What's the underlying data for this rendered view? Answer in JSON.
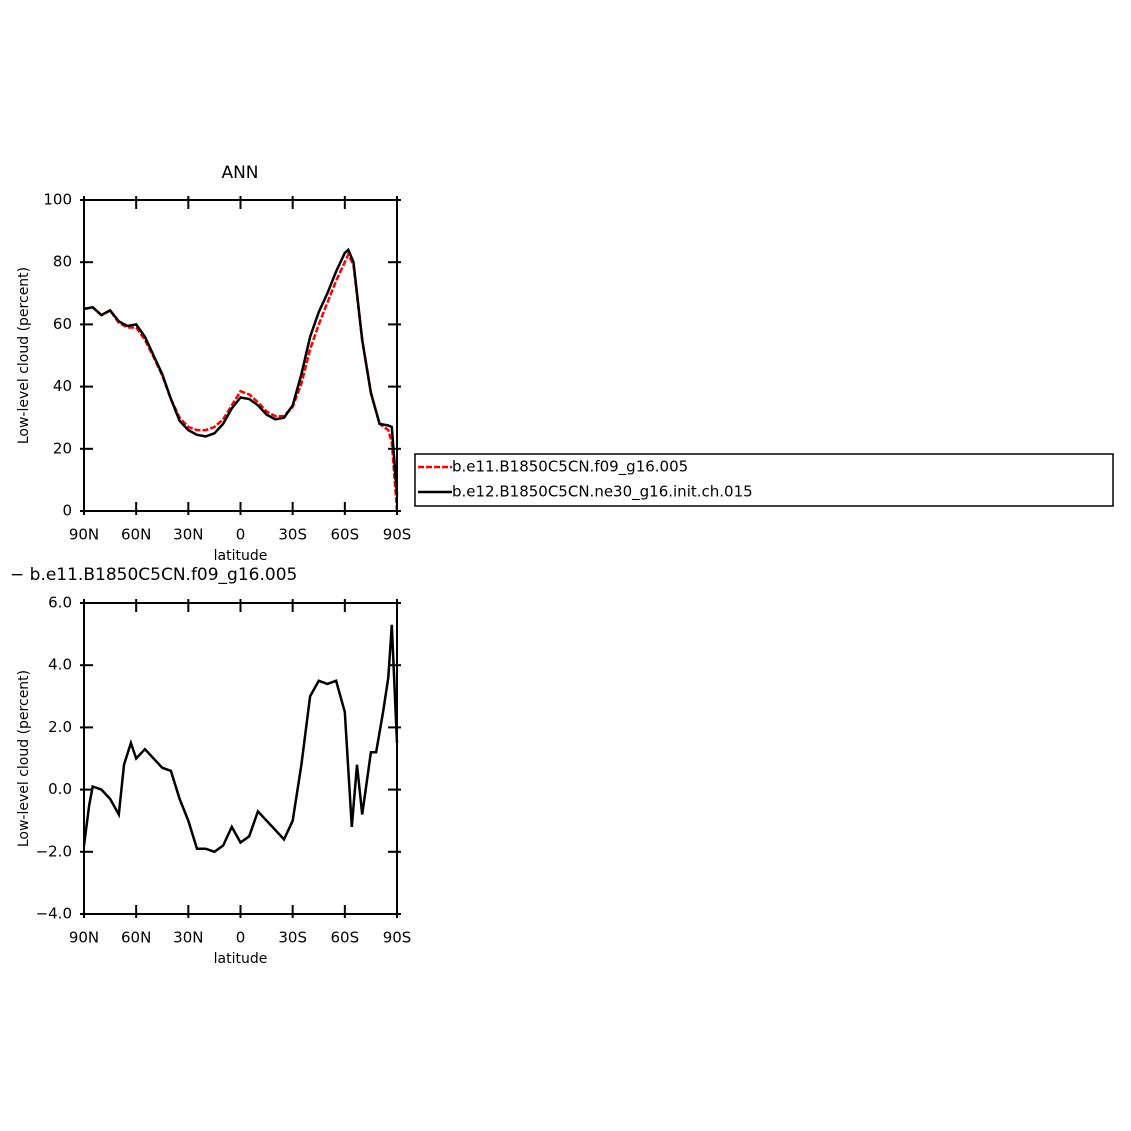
{
  "chart_data": [
    {
      "type": "line",
      "title": "ANN",
      "ylabel": "Low-level cloud (percent)",
      "xlabel": "latitude",
      "x": [
        90,
        85,
        80,
        75,
        70,
        65,
        60,
        55,
        50,
        45,
        40,
        35,
        30,
        25,
        20,
        15,
        10,
        5,
        0,
        -5,
        -10,
        -15,
        -20,
        -25,
        -30,
        -35,
        -40,
        -45,
        -50,
        -55,
        -60,
        -62,
        -65,
        -70,
        -75,
        -80,
        -85,
        -87,
        -90
      ],
      "xlim": [
        90,
        -90
      ],
      "xticks": [
        {
          "value": 90,
          "label": "90N"
        },
        {
          "value": 60,
          "label": "60N"
        },
        {
          "value": 30,
          "label": "30N"
        },
        0,
        {
          "value": -30,
          "label": "30S"
        },
        {
          "value": -60,
          "label": "60S"
        },
        {
          "value": -90,
          "label": "90S"
        }
      ],
      "ylim": [
        0,
        100
      ],
      "yticks": [
        0,
        20,
        40,
        60,
        80,
        100
      ],
      "legend": "right",
      "series": [
        {
          "name": "b.e11.B1850C5CN.f09_g16.005",
          "color": "#ff0000",
          "dash": "dashed",
          "values": [
            65,
            65.5,
            63,
            64.5,
            60.5,
            59,
            59,
            55,
            49.5,
            43.5,
            36,
            30,
            27,
            26,
            26,
            27,
            29.5,
            34,
            38.5,
            37.5,
            35,
            32,
            30.5,
            30.5,
            33.5,
            41,
            52,
            60,
            67,
            74,
            80,
            82.5,
            79,
            55,
            38,
            28,
            26,
            22,
            0
          ]
        },
        {
          "name": "b.e12.B1850C5CN.ne30_g16.init.ch.015",
          "color": "#000000",
          "dash": "solid",
          "values": [
            65,
            65.5,
            63,
            64.5,
            61,
            59.5,
            60,
            56,
            50,
            44,
            36,
            29,
            26,
            24.5,
            24,
            25,
            28,
            33,
            36.5,
            36,
            34,
            31,
            29.5,
            30,
            34,
            44,
            56,
            64,
            70,
            77,
            83,
            84,
            80,
            55,
            38,
            28,
            27.5,
            27,
            5
          ]
        }
      ]
    },
    {
      "type": "line",
      "title": "− b.e11.B1850C5CN.f09_g16.005",
      "ylabel": "Low-level cloud (percent)",
      "xlabel": "latitude",
      "x": [
        90,
        87,
        85,
        80,
        75,
        70,
        67,
        63,
        60,
        55,
        50,
        45,
        40,
        35,
        30,
        25,
        20,
        15,
        10,
        5,
        0,
        -5,
        -10,
        -15,
        -20,
        -25,
        -30,
        -35,
        -40,
        -45,
        -50,
        -55,
        -60,
        -64,
        -67,
        -70,
        -75,
        -78,
        -82,
        -85,
        -87,
        -90
      ],
      "xlim": [
        90,
        -90
      ],
      "xticks": [
        {
          "value": 90,
          "label": "90N"
        },
        {
          "value": 60,
          "label": "60N"
        },
        {
          "value": 30,
          "label": "30N"
        },
        0,
        {
          "value": -30,
          "label": "30S"
        },
        {
          "value": -60,
          "label": "60S"
        },
        {
          "value": -90,
          "label": "90S"
        }
      ],
      "ylim": [
        -4,
        6
      ],
      "yticks": [
        {
          "value": -4,
          "label": "−4.0"
        },
        {
          "value": -2,
          "label": "−2.0"
        },
        {
          "value": 0,
          "label": "0.0"
        },
        {
          "value": 2,
          "label": "2.0"
        },
        {
          "value": 4,
          "label": "4.0"
        },
        {
          "value": 6,
          "label": "6.0"
        }
      ],
      "series": [
        {
          "color": "#000000",
          "dash": "solid",
          "values": [
            -1.8,
            -0.5,
            0.1,
            0.0,
            -0.3,
            -0.8,
            0.8,
            1.5,
            1.0,
            1.3,
            1.0,
            0.7,
            0.6,
            -0.3,
            -1.0,
            -1.9,
            -1.9,
            -2.0,
            -1.8,
            -1.2,
            -1.7,
            -1.5,
            -0.7,
            -1.0,
            -1.3,
            -1.6,
            -1.0,
            0.8,
            3.0,
            3.5,
            3.4,
            3.5,
            2.5,
            -1.2,
            0.8,
            -0.8,
            1.2,
            1.2,
            2.5,
            3.6,
            5.3,
            1.5
          ]
        }
      ]
    }
  ]
}
